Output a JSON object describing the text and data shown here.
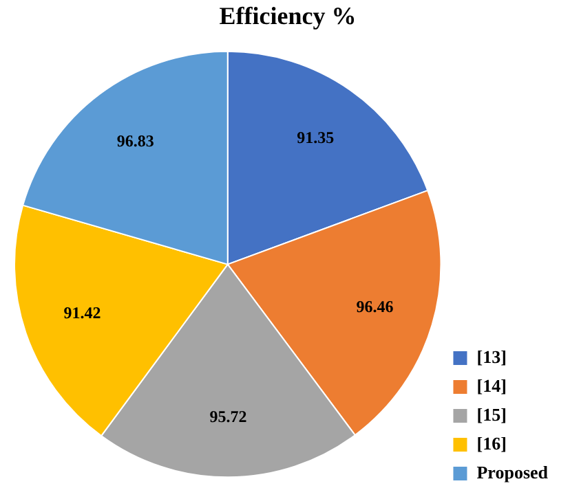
{
  "chart_data": {
    "type": "pie",
    "title": "Efficiency %",
    "categories": [
      "[13]",
      "[14]",
      "[15]",
      "[16]",
      "Proposed"
    ],
    "values": [
      91.35,
      96.46,
      95.72,
      91.42,
      96.83
    ],
    "colors": [
      "#4472c4",
      "#ed7d31",
      "#a5a5a5",
      "#ffc000",
      "#5b9bd5"
    ],
    "data_labels": true,
    "legend": "right"
  }
}
